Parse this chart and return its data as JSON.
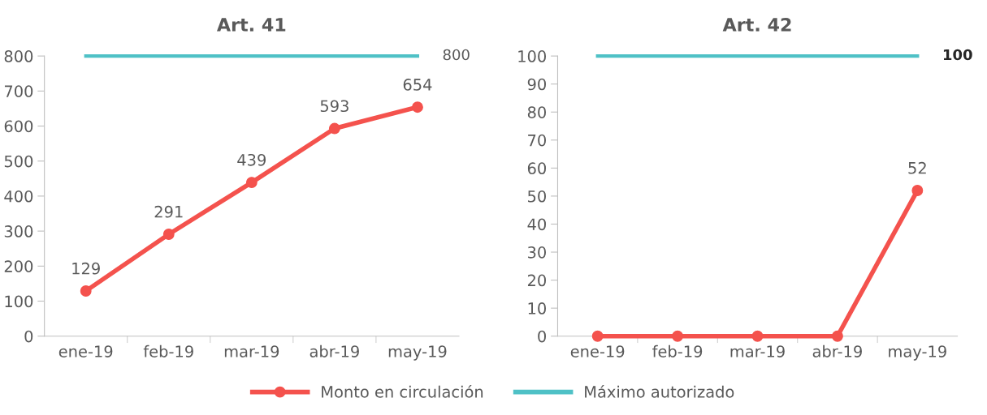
{
  "chart_data": [
    {
      "type": "line",
      "title": "Art. 41",
      "categories": [
        "ene-19",
        "feb-19",
        "mar-19",
        "abr-19",
        "may-19"
      ],
      "ylim": [
        0,
        800
      ],
      "yticks": [
        0,
        100,
        200,
        300,
        400,
        500,
        600,
        700,
        800
      ],
      "grid": false,
      "legend": "bottom",
      "series": [
        {
          "name": "Monto en circulación",
          "color": "#f4524d",
          "marker": "circle",
          "values": [
            129,
            291,
            439,
            593,
            654
          ],
          "value_labels": [
            "129",
            "291",
            "439",
            "593",
            "654"
          ]
        },
        {
          "name": "Máximo autorizado",
          "color": "#4fc1c6",
          "marker": "none",
          "values": [
            800,
            800,
            800,
            800,
            800
          ],
          "value_labels": [
            null,
            null,
            null,
            null,
            "800"
          ]
        }
      ]
    },
    {
      "type": "line",
      "title": "Art. 42",
      "categories": [
        "ene-19",
        "feb-19",
        "mar-19",
        "abr-19",
        "may-19"
      ],
      "ylim": [
        0,
        100
      ],
      "yticks": [
        0,
        10,
        20,
        30,
        40,
        50,
        60,
        70,
        80,
        90,
        100
      ],
      "grid": false,
      "series": [
        {
          "color": "#f4524d",
          "marker": "circle",
          "values": [
            0,
            0,
            0,
            0,
            52
          ],
          "value_labels": [
            null,
            null,
            null,
            null,
            "52"
          ]
        },
        {
          "color": "#4fc1c6",
          "marker": "none",
          "values": [
            100,
            100,
            100,
            100,
            100
          ],
          "value_labels": [
            null,
            null,
            null,
            null,
            "100"
          ]
        }
      ]
    }
  ]
}
